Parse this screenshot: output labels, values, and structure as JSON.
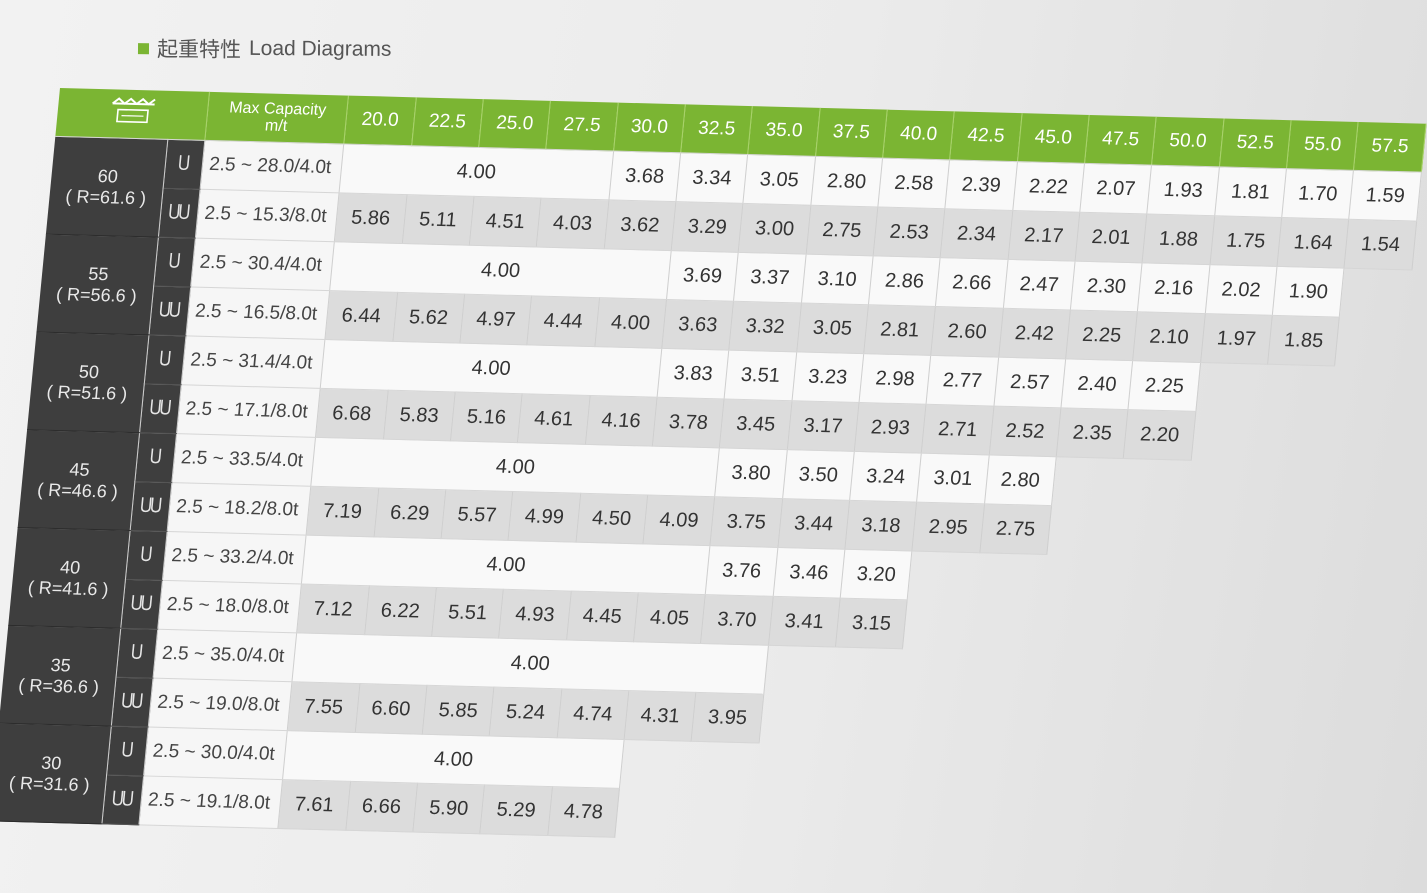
{
  "heading": {
    "cn": "起重特性",
    "en": "Load Diagrams"
  },
  "header": {
    "capacity_label": "Max Capacity",
    "capacity_unit": "m/t",
    "radii": [
      "20.0",
      "22.5",
      "25.0",
      "27.5",
      "30.0",
      "32.5",
      "35.0",
      "37.5",
      "40.0",
      "42.5",
      "45.0",
      "47.5",
      "50.0",
      "52.5",
      "55.0",
      "57.5"
    ]
  },
  "booms": [
    {
      "length": "60",
      "radius": "( R=61.6 )",
      "single": {
        "range": "2.5 ~ 28.0/4.0t",
        "flat": "4.00",
        "flat_span": 4,
        "values": [
          "3.68",
          "3.34",
          "3.05",
          "2.80",
          "2.58",
          "2.39",
          "2.22",
          "2.07",
          "1.93",
          "1.81",
          "1.70",
          "1.59"
        ]
      },
      "double": {
        "range": "2.5 ~ 15.3/8.0t",
        "values": [
          "5.86",
          "5.11",
          "4.51",
          "4.03",
          "3.62",
          "3.29",
          "3.00",
          "2.75",
          "2.53",
          "2.34",
          "2.17",
          "2.01",
          "1.88",
          "1.75",
          "1.64",
          "1.54"
        ]
      }
    },
    {
      "length": "55",
      "radius": "( R=56.6 )",
      "single": {
        "range": "2.5 ~ 30.4/4.0t",
        "flat": "4.00",
        "flat_span": 5,
        "values": [
          "3.69",
          "3.37",
          "3.10",
          "2.86",
          "2.66",
          "2.47",
          "2.30",
          "2.16",
          "2.02",
          "1.90"
        ]
      },
      "double": {
        "range": "2.5 ~ 16.5/8.0t",
        "values": [
          "6.44",
          "5.62",
          "4.97",
          "4.44",
          "4.00",
          "3.63",
          "3.32",
          "3.05",
          "2.81",
          "2.60",
          "2.42",
          "2.25",
          "2.10",
          "1.97",
          "1.85"
        ]
      }
    },
    {
      "length": "50",
      "radius": "( R=51.6 )",
      "single": {
        "range": "2.5 ~ 31.4/4.0t",
        "flat": "4.00",
        "flat_span": 5,
        "values": [
          "3.83",
          "3.51",
          "3.23",
          "2.98",
          "2.77",
          "2.57",
          "2.40",
          "2.25"
        ]
      },
      "double": {
        "range": "2.5 ~ 17.1/8.0t",
        "values": [
          "6.68",
          "5.83",
          "5.16",
          "4.61",
          "4.16",
          "3.78",
          "3.45",
          "3.17",
          "2.93",
          "2.71",
          "2.52",
          "2.35",
          "2.20"
        ]
      }
    },
    {
      "length": "45",
      "radius": "( R=46.6 )",
      "single": {
        "range": "2.5 ~ 33.5/4.0t",
        "flat": "4.00",
        "flat_span": 6,
        "values": [
          "3.80",
          "3.50",
          "3.24",
          "3.01",
          "2.80"
        ]
      },
      "double": {
        "range": "2.5 ~ 18.2/8.0t",
        "values": [
          "7.19",
          "6.29",
          "5.57",
          "4.99",
          "4.50",
          "4.09",
          "3.75",
          "3.44",
          "3.18",
          "2.95",
          "2.75"
        ]
      }
    },
    {
      "length": "40",
      "radius": "( R=41.6 )",
      "single": {
        "range": "2.5 ~ 33.2/4.0t",
        "flat": "4.00",
        "flat_span": 6,
        "values": [
          "3.76",
          "3.46",
          "3.20"
        ]
      },
      "double": {
        "range": "2.5 ~ 18.0/8.0t",
        "values": [
          "7.12",
          "6.22",
          "5.51",
          "4.93",
          "4.45",
          "4.05",
          "3.70",
          "3.41",
          "3.15"
        ]
      }
    },
    {
      "length": "35",
      "radius": "( R=36.6 )",
      "single": {
        "range": "2.5 ~ 35.0/4.0t",
        "flat": "4.00",
        "flat_span": 7,
        "values": []
      },
      "double": {
        "range": "2.5 ~ 19.0/8.0t",
        "values": [
          "7.55",
          "6.60",
          "5.85",
          "5.24",
          "4.74",
          "4.31",
          "3.95"
        ]
      }
    },
    {
      "length": "30",
      "radius": "( R=31.6 )",
      "single": {
        "range": "2.5 ~ 30.0/4.0t",
        "flat": "4.00",
        "flat_span": 5,
        "values": []
      },
      "double": {
        "range": "2.5 ~ 19.1/8.0t",
        "values": [
          "7.61",
          "6.66",
          "5.90",
          "5.29",
          "4.78"
        ]
      }
    }
  ],
  "icons": {
    "single_hook": "single-hook-icon",
    "double_hook": "double-hook-icon",
    "crane": "crane-icon"
  },
  "colors": {
    "header_green": "#7bb533",
    "boom_dark": "#3e3e3e",
    "cell_light": "#f9f9f9",
    "cell_gray": "#dcdcdc"
  }
}
